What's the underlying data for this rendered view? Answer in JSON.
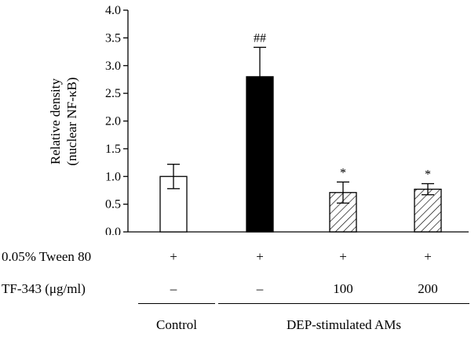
{
  "chart_data": {
    "type": "bar",
    "ylabel": [
      "Relative density",
      "(nuclear NF-κB)"
    ],
    "ylim": [
      0,
      4.0
    ],
    "yticks": [
      "0.0",
      "0.5",
      "1.0",
      "1.5",
      "2.0",
      "2.5",
      "3.0",
      "3.5",
      "4.0"
    ],
    "grid": false,
    "bars": [
      {
        "value": 1.0,
        "error": 0.22,
        "fill": "white",
        "annotation": ""
      },
      {
        "value": 2.8,
        "error": 0.53,
        "fill": "black",
        "annotation": "##"
      },
      {
        "value": 0.71,
        "error": 0.19,
        "fill": "hatched",
        "annotation": "*"
      },
      {
        "value": 0.77,
        "error": 0.1,
        "fill": "hatched",
        "annotation": "*"
      }
    ]
  },
  "table": {
    "row1": {
      "label": "0.05% Tween 80",
      "values": [
        "+",
        "+",
        "+",
        "+"
      ]
    },
    "row2": {
      "label": "TF-343 (μg/ml)",
      "values": [
        "–",
        "–",
        "100",
        "200"
      ]
    }
  },
  "groups": {
    "control": "Control",
    "dep": "DEP-stimulated AMs"
  }
}
